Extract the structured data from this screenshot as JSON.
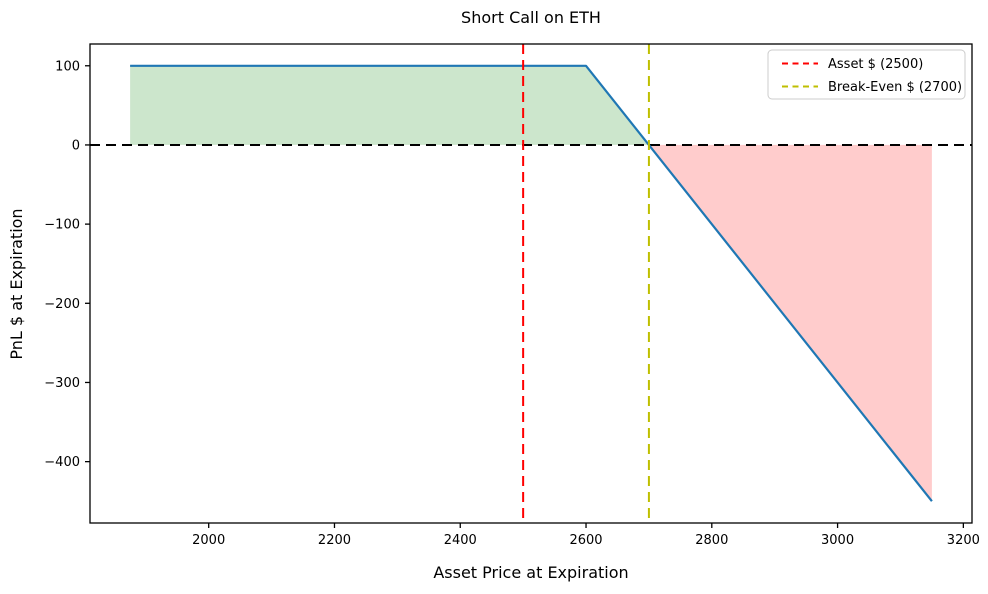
{
  "chart_data": {
    "type": "line",
    "title": "Short Call on ETH",
    "xlabel": "Asset Price at Expiration",
    "ylabel": "PnL $ at Expiration",
    "xlim": [
      1811.25,
      3213.75
    ],
    "ylim": [
      -477.5,
      127.5
    ],
    "x_ticks": [
      2000,
      2200,
      2400,
      2600,
      2800,
      3000,
      3200
    ],
    "y_ticks": [
      100,
      0,
      -100,
      -200,
      -300,
      -400
    ],
    "grid": false,
    "series": [
      {
        "name": "short-call-payoff",
        "color": "#1f77b4",
        "style": "solid",
        "points": [
          [
            1875,
            100
          ],
          [
            2600,
            100
          ],
          [
            3150,
            -450
          ]
        ]
      }
    ],
    "fills": [
      {
        "name": "profit-region",
        "color": "rgba(0,128,0,0.2)",
        "points": [
          [
            1875,
            100
          ],
          [
            2600,
            100
          ],
          [
            2700,
            0
          ],
          [
            1875,
            0
          ]
        ]
      },
      {
        "name": "loss-region",
        "color": "rgba(255,0,0,0.2)",
        "points": [
          [
            2700,
            0
          ],
          [
            3150,
            -450
          ],
          [
            3150,
            0
          ]
        ]
      }
    ],
    "hlines": [
      {
        "y": 0,
        "color": "#000000",
        "style": "dashed"
      }
    ],
    "vlines": [
      {
        "x": 2500,
        "color": "#ff0000",
        "style": "dashed",
        "label": "Asset $ (2500)"
      },
      {
        "x": 2700,
        "color": "#bfbf00",
        "style": "dashed",
        "label": "Break-Even $ (2700)"
      }
    ],
    "legend": {
      "position": "upper right",
      "entries": [
        {
          "label": "Asset $ (2500)",
          "color": "#ff0000",
          "style": "dashed"
        },
        {
          "label": "Break-Even $ (2700)",
          "color": "#bfbf00",
          "style": "dashed"
        }
      ]
    }
  }
}
